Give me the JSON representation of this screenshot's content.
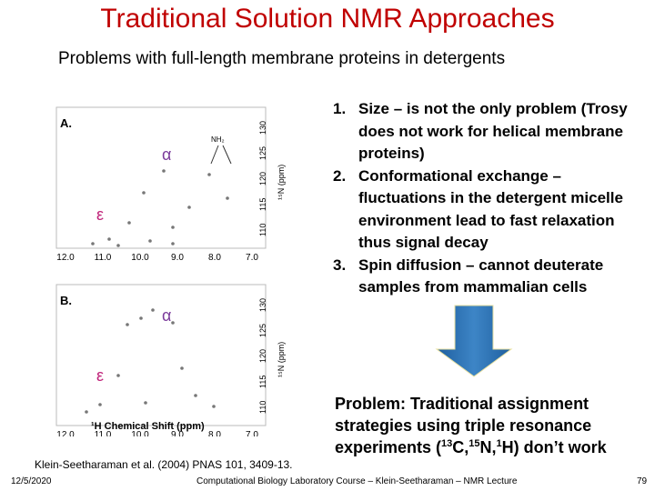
{
  "header": {
    "title": "Traditional Solution NMR Approaches",
    "subtitle": "Problems with full-length membrane proteins in detergents"
  },
  "figure": {
    "panels": [
      {
        "label": "A.",
        "alpha": "α",
        "epsilon": "ε",
        "annotation": "NH₂"
      },
      {
        "label": "B.",
        "alpha": "α",
        "epsilon": "ε"
      }
    ],
    "x_ticks": [
      "12.0",
      "11.0",
      "10.0",
      "9.0",
      "8.0",
      "7.0"
    ],
    "y_ticks": [
      "110",
      "115",
      "120",
      "125",
      "130"
    ],
    "y_axis_label": "¹⁵N (ppm)",
    "x_axis_label": "¹H Chemical Shift (ppm)"
  },
  "points": [
    {
      "number": "1.",
      "text": "Size – is not the only problem (Trosy does not work for helical membrane proteins)"
    },
    {
      "number": "2.",
      "text": "Conformational exchange – fluctuations in the detergent micelle environment lead to fast relaxation thus signal decay"
    },
    {
      "number": "3.",
      "text": "Spin diffusion – cannot deuterate samples from mammalian cells"
    }
  ],
  "problem": [
    {
      "text": "Problem: Traditional assignment strategies using triple resonance experiments ("
    },
    {
      "sup": "13"
    },
    {
      "text": "C,"
    },
    {
      "sup": "15"
    },
    {
      "text": "N,"
    },
    {
      "sup": "1"
    },
    {
      "text": "H) don’t work"
    }
  ],
  "citation": "Klein-Seetharaman et al. (2004) PNAS 101, 3409-13.",
  "footer": {
    "date": "12/5/2020",
    "course": "Computational Biology Laboratory Course – Klein-Seetharaman – NMR Lecture",
    "page": "79"
  }
}
